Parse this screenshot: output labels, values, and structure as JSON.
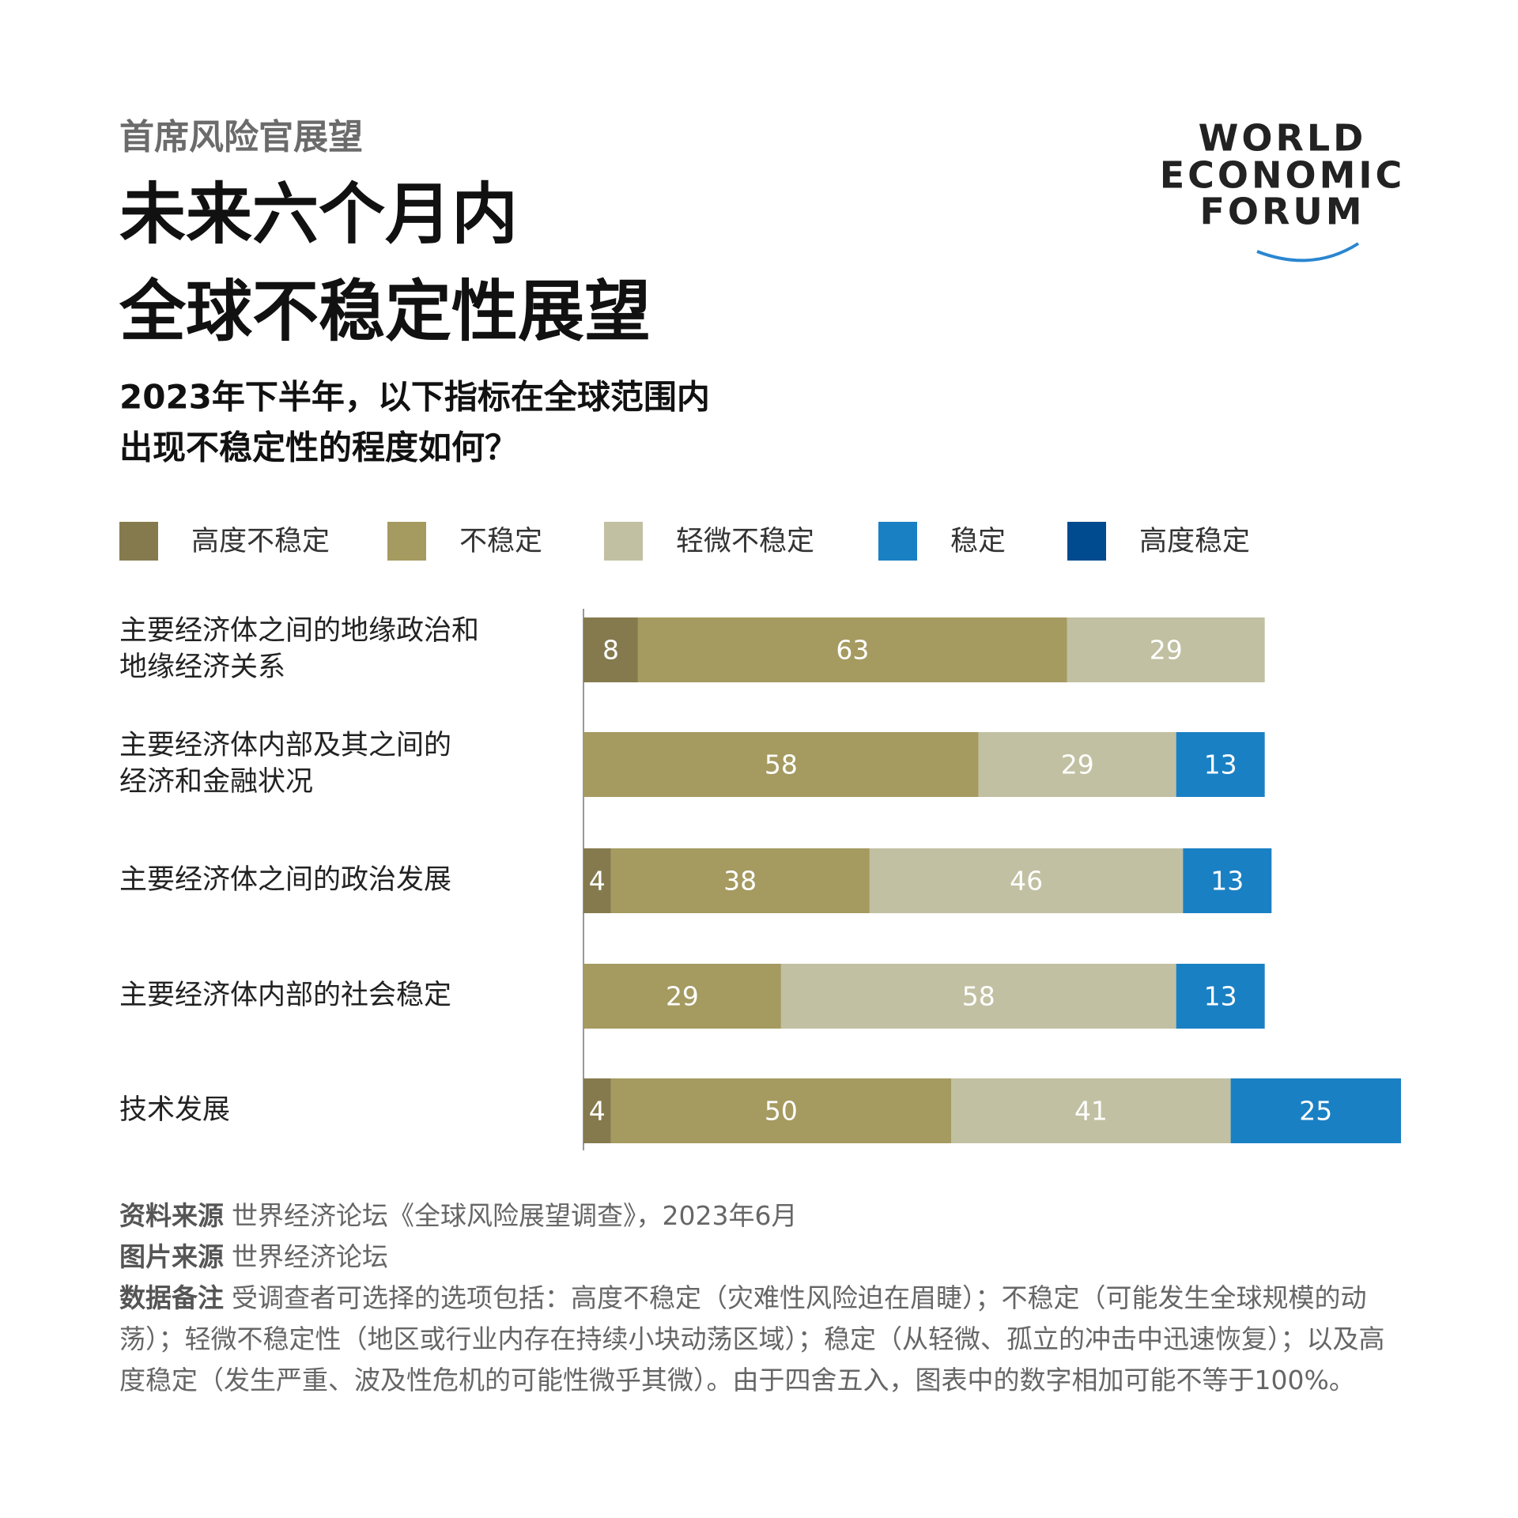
{
  "chart_data": {
    "type": "stacked_barh",
    "kicker": "首席风险官展望",
    "title": [
      "未来六个月内",
      "全球不稳定性展望"
    ],
    "subtitle": [
      "2023年下半年，以下指标在全球范围内",
      "出现不稳定性的程度如何？"
    ],
    "categories": [
      [
        "主要经济体之间的地缘政治和",
        "地缘经济关系"
      ],
      [
        "主要经济体内部及其之间的",
        "经济和金融状况"
      ],
      [
        "主要经济体之间的政治发展"
      ],
      [
        "主要经济体内部的社会稳定"
      ],
      [
        "技术发展"
      ]
    ],
    "series": [
      {
        "name": "高度不稳定",
        "color": "#857a4e",
        "values": [
          8,
          null,
          4,
          null,
          4
        ]
      },
      {
        "name": "不稳定",
        "color": "#a59a60",
        "values": [
          63,
          58,
          38,
          29,
          50
        ]
      },
      {
        "name": "轻微不稳定",
        "color": "#c1c0a2",
        "values": [
          29,
          29,
          46,
          58,
          41
        ]
      },
      {
        "name": "稳定",
        "color": "#1a80c4",
        "values": [
          null,
          13,
          13,
          13,
          25
        ]
      },
      {
        "name": "高度稳定",
        "color": "#004a8f",
        "values": [
          null,
          null,
          null,
          null,
          null
        ]
      }
    ],
    "xlim": [
      0,
      120
    ],
    "notes": [
      {
        "lead": "资料来源",
        "text": "世界经济论坛《全球风险展望调查》，2023年6月"
      },
      {
        "lead": "图片来源",
        "text": "世界经济论坛"
      },
      {
        "lead": "数据备注",
        "text": "受调查者可选择的选项包括：高度不稳定（灾难性风险迫在眉睫）；不稳定（可能发生全球规模的动荡）；轻微不稳定性（地区或行业内存在持续小块动荡区域）；稳定（从轻微、孤立的冲击中迅速恢复）；以及高度稳定（发生严重、波及性危机的可能性微乎其微）。由于四舍五入，图表中的数字相加可能不等于100%。"
      }
    ],
    "logo": [
      "WORLD",
      "ECONOMIC",
      "FORUM"
    ]
  }
}
